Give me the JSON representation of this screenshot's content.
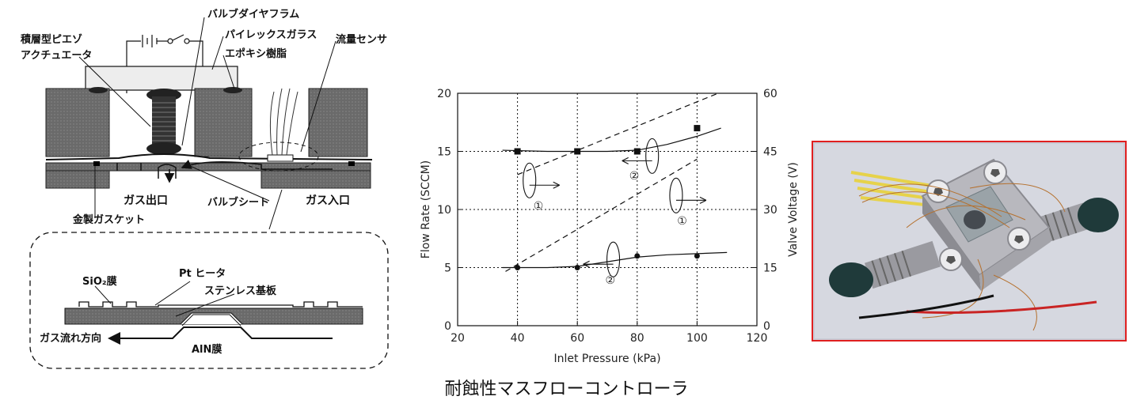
{
  "diagram": {
    "labels": {
      "valve_diaphragm": "バルブダイヤフラム",
      "pyrex_glass": "パイレックスガラス",
      "piezo_actuator_line1": "積層型ピエゾ",
      "piezo_actuator_line2": "アクチュエータ",
      "epoxy_resin": "エポキシ樹脂",
      "flow_sensor": "流量センサ",
      "gas_outlet": "ガス出口",
      "gas_inlet": "ガス入口",
      "valve_seat": "バルブシート",
      "gold_gasket": "金製ガスケット"
    },
    "inset_labels": {
      "sio2_film": "SiO₂膜",
      "pt_heater": "Pt ヒータ",
      "stainless_substrate": "ステンレス基板",
      "gas_flow_direction": "ガス流れ方向",
      "aln_film": "AlN膜"
    }
  },
  "chart_data": {
    "type": "scatter",
    "xlabel": "Inlet Pressure (kPa)",
    "ylabel": "Flow Rate (SCCM)",
    "y2label": "Valve Voltage (V)",
    "xlim": [
      20,
      120
    ],
    "ylim": [
      0,
      20
    ],
    "y2lim": [
      0,
      60
    ],
    "xticks": [
      "20",
      "40",
      "60",
      "80",
      "100",
      "120"
    ],
    "yticks": [
      "0",
      "5",
      "10",
      "15",
      "20"
    ],
    "y2ticks": [
      "0",
      "15",
      "30",
      "45",
      "60"
    ],
    "grid": true,
    "series": [
      {
        "marker": "square",
        "axis": "left",
        "x": [
          40,
          60,
          80,
          100
        ],
        "y": [
          15,
          15,
          15,
          17
        ]
      },
      {
        "marker": "circle",
        "axis": "left",
        "x": [
          40,
          60,
          80,
          100
        ],
        "y": [
          5,
          5,
          6,
          6
        ]
      },
      {
        "line": "solid",
        "axis": "left",
        "x": [
          35,
          50,
          60,
          70,
          80,
          90,
          100,
          108
        ],
        "y": [
          15.1,
          15.0,
          15.0,
          15.0,
          15.1,
          15.6,
          16.3,
          17.0
        ]
      },
      {
        "line": "solid",
        "axis": "left",
        "x": [
          35,
          50,
          60,
          70,
          80,
          90,
          100,
          110
        ],
        "y": [
          5.0,
          5.0,
          5.1,
          5.5,
          5.9,
          6.1,
          6.2,
          6.3
        ]
      },
      {
        "line": "dashed",
        "axis": "right",
        "x": [
          40,
          107
        ],
        "y": [
          39,
          60
        ]
      },
      {
        "line": "dashed",
        "axis": "right",
        "x": [
          36,
          100
        ],
        "y": [
          14,
          43
        ]
      }
    ],
    "annotations": [
      "①",
      "②",
      "①",
      "②"
    ]
  },
  "photo": {
    "border_color": "#e02020"
  },
  "caption": "耐蝕性マスフローコントローラ"
}
